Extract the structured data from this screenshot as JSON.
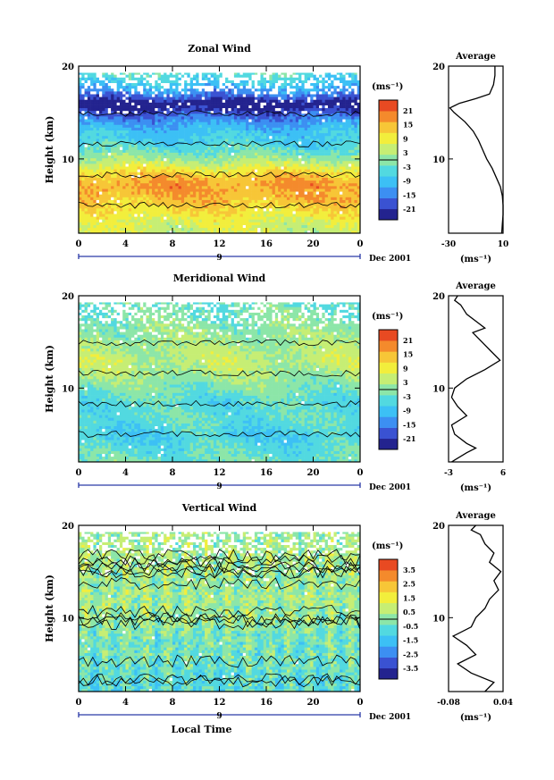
{
  "colors": {
    "scale": [
      "#23238f",
      "#3a52d2",
      "#3c8ff2",
      "#3cc0f5",
      "#52d9e0",
      "#8ce6a8",
      "#c6ee74",
      "#f2ee3c",
      "#f7c637",
      "#f48a2c",
      "#e84a22"
    ],
    "frame": "#000000",
    "missing": "#ffffff"
  },
  "chart_data": [
    {
      "id": "zonal",
      "type": "heatmap",
      "title": "Zonal Wind",
      "ylabel": "Height (km)",
      "xlabel": "",
      "date_label": "Dec 2001",
      "x_ticks": [
        "0",
        "4",
        "8",
        "12",
        "16",
        "20",
        "0"
      ],
      "xlim": [
        0,
        24
      ],
      "y_ticks": [
        "20",
        "10"
      ],
      "ylim": [
        2,
        20
      ],
      "day_marker": "9",
      "colorbar": {
        "unit": "(ms⁻¹)",
        "ticks": [
          "21",
          "15",
          "9",
          "3",
          "-3",
          "-9",
          "-15",
          "-21"
        ],
        "range": [
          -24,
          24
        ]
      },
      "profile_by_height": [
        {
          "h": 2,
          "v": 5
        },
        {
          "h": 3,
          "v": 6
        },
        {
          "h": 4,
          "v": 9
        },
        {
          "h": 5,
          "v": 12
        },
        {
          "h": 6,
          "v": 14
        },
        {
          "h": 7,
          "v": 16
        },
        {
          "h": 8,
          "v": 14
        },
        {
          "h": 9,
          "v": 8
        },
        {
          "h": 10,
          "v": 2
        },
        {
          "h": 11,
          "v": -3
        },
        {
          "h": 12,
          "v": -6
        },
        {
          "h": 13,
          "v": -8
        },
        {
          "h": 14,
          "v": -12
        },
        {
          "h": 15,
          "v": -18
        },
        {
          "h": 16,
          "v": -24
        },
        {
          "h": 17,
          "v": -14
        },
        {
          "h": 18,
          "v": -8
        },
        {
          "h": 19,
          "v": -4
        },
        {
          "h": 20,
          "v": -2
        }
      ],
      "average": {
        "title": "Average",
        "unit": "(ms⁻¹)",
        "x_ticks": [
          "-30",
          "10"
        ],
        "xlim": [
          -30,
          10
        ],
        "y_ticks": [
          "20",
          "10"
        ],
        "ylim": [
          2,
          20
        ],
        "points": [
          {
            "h": 2,
            "v": 9
          },
          {
            "h": 3,
            "v": 9.5
          },
          {
            "h": 4,
            "v": 10
          },
          {
            "h": 5,
            "v": 10
          },
          {
            "h": 6,
            "v": 9.5
          },
          {
            "h": 7,
            "v": 8
          },
          {
            "h": 8,
            "v": 5
          },
          {
            "h": 9,
            "v": 2
          },
          {
            "h": 10,
            "v": -2
          },
          {
            "h": 11,
            "v": -5
          },
          {
            "h": 12,
            "v": -8
          },
          {
            "h": 13,
            "v": -12
          },
          {
            "h": 14,
            "v": -18
          },
          {
            "h": 15,
            "v": -26
          },
          {
            "h": 15.5,
            "v": -29
          },
          {
            "h": 16,
            "v": -22
          },
          {
            "h": 16.5,
            "v": -10
          },
          {
            "h": 17,
            "v": 0
          },
          {
            "h": 18,
            "v": 3
          },
          {
            "h": 19,
            "v": 4
          },
          {
            "h": 20,
            "v": 4
          }
        ]
      }
    },
    {
      "id": "meridional",
      "type": "heatmap",
      "title": "Meridional Wind",
      "ylabel": "Height (km)",
      "xlabel": "",
      "date_label": "Dec 2001",
      "x_ticks": [
        "0",
        "4",
        "8",
        "12",
        "16",
        "20",
        "0"
      ],
      "xlim": [
        0,
        24
      ],
      "y_ticks": [
        "20",
        "10"
      ],
      "ylim": [
        2,
        20
      ],
      "day_marker": "9",
      "colorbar": {
        "unit": "(ms⁻¹)",
        "ticks": [
          "21",
          "15",
          "9",
          "3",
          "-3",
          "-9",
          "-15",
          "-21"
        ],
        "range": [
          -24,
          24
        ]
      },
      "profile_by_height": [
        {
          "h": 2,
          "v": -2
        },
        {
          "h": 3,
          "v": -3
        },
        {
          "h": 4,
          "v": -5
        },
        {
          "h": 5,
          "v": -6
        },
        {
          "h": 6,
          "v": -4
        },
        {
          "h": 7,
          "v": -3
        },
        {
          "h": 8,
          "v": -4
        },
        {
          "h": 9,
          "v": -3
        },
        {
          "h": 10,
          "v": -1
        },
        {
          "h": 11,
          "v": 1
        },
        {
          "h": 12,
          "v": 3
        },
        {
          "h": 13,
          "v": 4
        },
        {
          "h": 14,
          "v": 3
        },
        {
          "h": 15,
          "v": 2
        },
        {
          "h": 16,
          "v": 1
        },
        {
          "h": 17,
          "v": 0
        },
        {
          "h": 18,
          "v": -1
        },
        {
          "h": 19,
          "v": -2
        },
        {
          "h": 20,
          "v": -2
        }
      ],
      "average": {
        "title": "Average",
        "unit": "(ms⁻¹)",
        "x_ticks": [
          "-3",
          "6"
        ],
        "xlim": [
          -3,
          6
        ],
        "y_ticks": [
          "20",
          "10"
        ],
        "ylim": [
          2,
          20
        ],
        "points": [
          {
            "h": 2,
            "v": -2.5
          },
          {
            "h": 3,
            "v": 0
          },
          {
            "h": 3.5,
            "v": 1.5
          },
          {
            "h": 4,
            "v": 0
          },
          {
            "h": 5,
            "v": -2
          },
          {
            "h": 6,
            "v": -2.5
          },
          {
            "h": 7,
            "v": 0
          },
          {
            "h": 8,
            "v": -1.5
          },
          {
            "h": 9,
            "v": -2.5
          },
          {
            "h": 10,
            "v": -2
          },
          {
            "h": 11,
            "v": 0
          },
          {
            "h": 12,
            "v": 3
          },
          {
            "h": 13,
            "v": 5.5
          },
          {
            "h": 14,
            "v": 4
          },
          {
            "h": 15,
            "v": 2.5
          },
          {
            "h": 16,
            "v": 1
          },
          {
            "h": 16.5,
            "v": 3
          },
          {
            "h": 17,
            "v": 2
          },
          {
            "h": 18,
            "v": 0
          },
          {
            "h": 19,
            "v": -1
          },
          {
            "h": 19.5,
            "v": -2
          },
          {
            "h": 20,
            "v": -1.5
          }
        ]
      }
    },
    {
      "id": "vertical",
      "type": "heatmap",
      "title": "Vertical Wind",
      "ylabel": "Height (km)",
      "xlabel": "Local Time",
      "date_label": "Dec 2001",
      "x_ticks": [
        "0",
        "4",
        "8",
        "12",
        "16",
        "20",
        "0"
      ],
      "xlim": [
        0,
        24
      ],
      "y_ticks": [
        "20",
        "10"
      ],
      "ylim": [
        2,
        20
      ],
      "day_marker": "9",
      "colorbar": {
        "unit": "(ms⁻¹)",
        "ticks": [
          "3.5",
          "2.5",
          "1.5",
          "0.5",
          "-0.5",
          "-1.5",
          "-2.5",
          "-3.5"
        ],
        "range": [
          -4,
          4
        ]
      },
      "profile_by_height": [
        {
          "h": 2,
          "v": -0.7
        },
        {
          "h": 4,
          "v": -0.5
        },
        {
          "h": 6,
          "v": -0.3
        },
        {
          "h": 8,
          "v": -0.2
        },
        {
          "h": 10,
          "v": 0.2
        },
        {
          "h": 12,
          "v": 0.3
        },
        {
          "h": 14,
          "v": 0.2
        },
        {
          "h": 16,
          "v": 0.4
        },
        {
          "h": 18,
          "v": 0.3
        },
        {
          "h": 20,
          "v": 0.2
        }
      ],
      "average": {
        "title": "Average",
        "unit": "(ms⁻¹)",
        "x_ticks": [
          "-0.08",
          "0.04"
        ],
        "xlim": [
          -0.08,
          0.04
        ],
        "y_ticks": [
          "20",
          "10"
        ],
        "ylim": [
          2,
          20
        ],
        "points": [
          {
            "h": 2,
            "v": 0.0
          },
          {
            "h": 3,
            "v": 0.02
          },
          {
            "h": 4,
            "v": -0.03
          },
          {
            "h": 5,
            "v": -0.06
          },
          {
            "h": 6,
            "v": -0.02
          },
          {
            "h": 7,
            "v": -0.04
          },
          {
            "h": 8,
            "v": -0.07
          },
          {
            "h": 9,
            "v": -0.03
          },
          {
            "h": 10,
            "v": -0.02
          },
          {
            "h": 11,
            "v": 0.0
          },
          {
            "h": 12,
            "v": 0.01
          },
          {
            "h": 13,
            "v": 0.03
          },
          {
            "h": 14,
            "v": 0.02
          },
          {
            "h": 15,
            "v": 0.035
          },
          {
            "h": 16,
            "v": 0.01
          },
          {
            "h": 17,
            "v": 0.02
          },
          {
            "h": 18,
            "v": 0.0
          },
          {
            "h": 19,
            "v": -0.01
          },
          {
            "h": 19.5,
            "v": -0.03
          },
          {
            "h": 20,
            "v": -0.02
          }
        ]
      }
    }
  ]
}
